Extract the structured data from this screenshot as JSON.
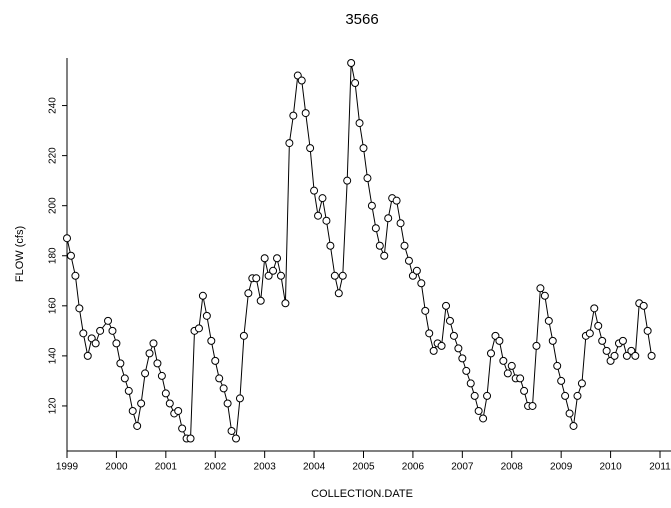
{
  "chart_data": {
    "type": "line",
    "title": "3566",
    "x_label": "COLLECTION.DATE",
    "y_label": "FLOW (cfs)",
    "x": [
      1999.0,
      1999.08,
      1999.17,
      1999.25,
      1999.33,
      1999.42,
      1999.5,
      1999.58,
      1999.67,
      1999.83,
      1999.92,
      2000.0,
      2000.08,
      2000.17,
      2000.25,
      2000.33,
      2000.42,
      2000.5,
      2000.58,
      2000.67,
      2000.75,
      2000.83,
      2000.92,
      2001.0,
      2001.08,
      2001.17,
      2001.25,
      2001.33,
      2001.42,
      2001.5,
      2001.58,
      2001.67,
      2001.75,
      2001.83,
      2001.92,
      2002.0,
      2002.08,
      2002.17,
      2002.25,
      2002.33,
      2002.42,
      2002.5,
      2002.58,
      2002.67,
      2002.75,
      2002.83,
      2002.92,
      2003.0,
      2003.08,
      2003.17,
      2003.25,
      2003.33,
      2003.42,
      2003.5,
      2003.58,
      2003.67,
      2003.75,
      2003.83,
      2003.92,
      2004.0,
      2004.08,
      2004.17,
      2004.25,
      2004.33,
      2004.42,
      2004.5,
      2004.58,
      2004.67,
      2004.75,
      2004.83,
      2004.92,
      2005.0,
      2005.08,
      2005.17,
      2005.25,
      2005.33,
      2005.42,
      2005.5,
      2005.58,
      2005.67,
      2005.75,
      2005.83,
      2005.92,
      2006.0,
      2006.08,
      2006.17,
      2006.25,
      2006.33,
      2006.42,
      2006.5,
      2006.58,
      2006.67,
      2006.75,
      2006.83,
      2006.92,
      2007.0,
      2007.08,
      2007.17,
      2007.25,
      2007.33,
      2007.42,
      2007.5,
      2007.58,
      2007.67,
      2007.75,
      2007.83,
      2007.92,
      2008.0,
      2008.08,
      2008.17,
      2008.25,
      2008.33,
      2008.42,
      2008.5,
      2008.58,
      2008.67,
      2008.75,
      2008.83,
      2008.92,
      2009.0,
      2009.08,
      2009.17,
      2009.25,
      2009.33,
      2009.42,
      2009.5,
      2009.58,
      2009.67,
      2009.75,
      2009.83,
      2009.92,
      2010.0,
      2010.08,
      2010.17,
      2010.25,
      2010.33,
      2010.42,
      2010.5,
      2010.58,
      2010.67,
      2010.75,
      2010.83
    ],
    "series": [
      {
        "color": "#000000",
        "values": [
          187,
          180,
          172,
          159,
          149,
          140,
          147,
          145,
          150,
          154,
          150,
          145,
          137,
          131,
          126,
          118,
          112,
          121,
          133,
          141,
          145,
          137,
          132,
          125,
          121,
          117,
          118,
          111,
          107,
          107,
          150,
          151,
          164,
          156,
          146,
          138,
          131,
          127,
          121,
          110,
          107,
          123,
          148,
          165,
          171,
          171,
          162,
          179,
          172,
          174,
          179,
          172,
          161,
          225,
          236,
          252,
          250,
          237,
          223,
          206,
          196,
          203,
          194,
          184,
          172,
          165,
          172,
          210,
          257,
          249,
          233,
          223,
          211,
          200,
          191,
          184,
          180,
          195,
          203,
          202,
          193,
          184,
          178,
          172,
          174,
          169,
          158,
          149,
          142,
          145,
          144,
          160,
          154,
          148,
          143,
          139,
          134,
          129,
          124,
          118,
          115,
          124,
          141,
          148,
          146,
          138,
          133,
          136,
          131,
          131,
          126,
          120,
          120,
          144,
          167,
          164,
          154,
          146,
          136,
          130,
          124,
          117,
          112,
          124,
          129,
          148,
          149,
          159,
          152,
          146,
          142,
          138,
          140,
          145,
          146,
          140,
          142,
          140,
          161,
          160,
          150,
          140
        ]
      }
    ],
    "xlim": [
      1999,
      2011
    ],
    "xticks": [
      1999,
      2000,
      2001,
      2002,
      2003,
      2004,
      2005,
      2006,
      2007,
      2008,
      2009,
      2010,
      2011
    ],
    "ylim": [
      102,
      259
    ],
    "yticks": [
      120,
      140,
      160,
      180,
      200,
      220,
      240
    ]
  }
}
